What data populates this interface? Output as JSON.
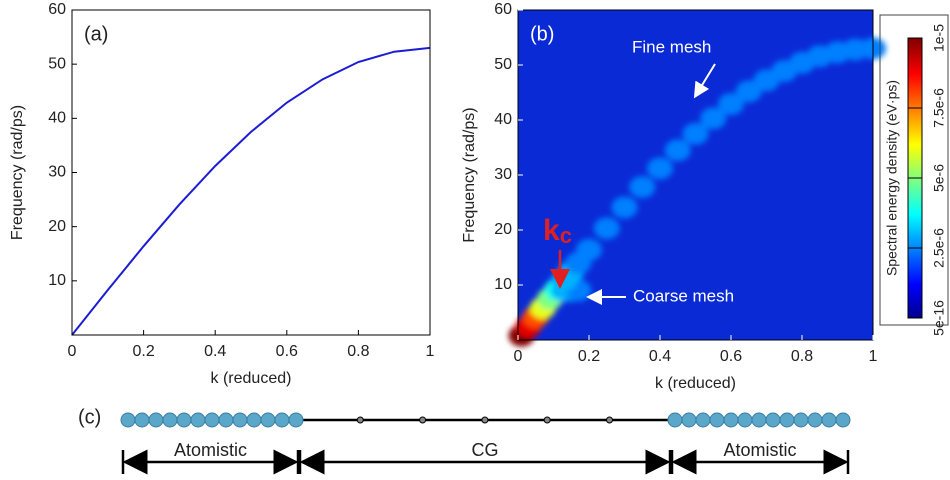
{
  "chart_data": [
    {
      "type": "line",
      "panel_label": "(a)",
      "xlabel": "k (reduced)",
      "ylabel": "Frequency (rad/ps)",
      "x": [
        0,
        0.1,
        0.2,
        0.3,
        0.4,
        0.5,
        0.6,
        0.7,
        0.8,
        0.9,
        1
      ],
      "series": [
        {
          "color": "#1c1cd6",
          "values": [
            0,
            8.3,
            16.4,
            24.1,
            31.2,
            37.5,
            42.9,
            47.2,
            50.4,
            52.3,
            53
          ]
        }
      ],
      "xlim": [
        0,
        1
      ],
      "ylim": [
        0,
        60
      ],
      "xticks": [
        0,
        0.2,
        0.4,
        0.6,
        0.8,
        1
      ],
      "yticks": [
        10,
        20,
        30,
        40,
        50,
        60
      ]
    },
    {
      "type": "heatmap",
      "panel_label": "(b)",
      "xlabel": "k (reduced)",
      "ylabel": "Frequency (rad/ps)",
      "annotations": [
        "Fine mesh",
        "Coarse mesh"
      ],
      "marker": {
        "text": "k",
        "subscript": "c"
      },
      "background": "#0a2ad6",
      "x": [
        0.01,
        0.03,
        0.05,
        0.07,
        0.09,
        0.11,
        0.13,
        0.15,
        0.17,
        0.13,
        0.15,
        0.17,
        0.2,
        0.25,
        0.3,
        0.35,
        0.4,
        0.45,
        0.5,
        0.55,
        0.6,
        0.65,
        0.7,
        0.75,
        0.8,
        0.85,
        0.9,
        0.95,
        1.0
      ],
      "y": [
        0.8,
        2.5,
        4.2,
        5.8,
        7.5,
        9.1,
        9,
        9,
        9,
        10.8,
        12.4,
        14,
        16.4,
        20.3,
        24.1,
        27.8,
        31.2,
        34.5,
        37.5,
        40.3,
        42.9,
        45.2,
        47.2,
        48.9,
        50.4,
        51.6,
        52.3,
        52.8,
        53
      ],
      "values": [
        1e-05,
        9e-06,
        8e-06,
        6e-06,
        5e-06,
        4e-06,
        3e-06,
        3e-06,
        2.5e-06,
        3e-06,
        3e-06,
        2.5e-06,
        2.5e-06,
        2.5e-06,
        2.5e-06,
        2.5e-06,
        2.5e-06,
        2.5e-06,
        2.5e-06,
        2.5e-06,
        2.5e-06,
        2.5e-06,
        2.5e-06,
        2.5e-06,
        2.5e-06,
        2.5e-06,
        2.5e-06,
        2.5e-06,
        2.5e-06
      ],
      "colorbar": {
        "label": "Spectral energy density (eV·ps)",
        "lim": [
          5e-16,
          1e-05
        ],
        "ticks": [
          {
            "value": 5e-16,
            "label": "5e-16"
          },
          {
            "value": 2.5e-06,
            "label": "2.5e-6"
          },
          {
            "value": 5e-06,
            "label": "5e-6"
          },
          {
            "value": 7.5e-06,
            "label": "7.5e-6"
          },
          {
            "value": 1e-05,
            "label": "1e-5"
          }
        ]
      },
      "xlim": [
        0,
        1
      ],
      "ylim": [
        0,
        60
      ],
      "xticks": [
        0,
        0.2,
        0.4,
        0.6,
        0.8,
        1
      ],
      "yticks": [
        10,
        20,
        30,
        40,
        50,
        60
      ]
    }
  ],
  "diagram": {
    "label": "(c)",
    "segments": [
      "Atomistic",
      "CG",
      "Atomistic"
    ]
  }
}
